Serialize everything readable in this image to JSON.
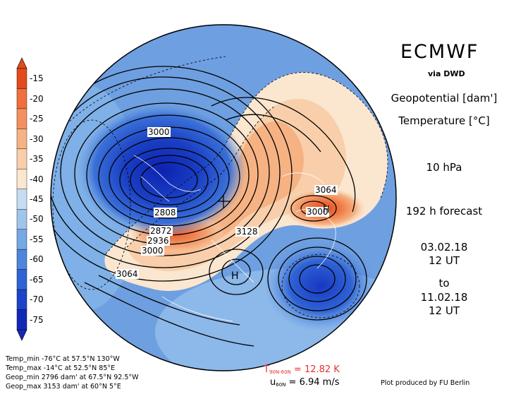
{
  "header": {
    "brand": "ECMWF",
    "source": "via DWD",
    "variable_1": "Geopotential [dam']",
    "variable_2": "Temperature [°C]",
    "level": "10 hPa",
    "forecast": "192 h forecast",
    "init_date": "03.02.18",
    "init_time": "12 UT",
    "to": "to",
    "valid_date": "11.02.18",
    "valid_time": "12 UT"
  },
  "colorbar": {
    "unit": "°C",
    "ticks": [
      "-15",
      "-20",
      "-25",
      "-30",
      "-35",
      "-40",
      "-45",
      "-50",
      "-55",
      "-60",
      "-65",
      "-70",
      "-75"
    ],
    "colors": [
      "#e34a1c",
      "#ef6f3e",
      "#f3905f",
      "#f6b283",
      "#f8cfaa",
      "#fbe6cf",
      "#c5dcf2",
      "#9fc5ec",
      "#75a8e4",
      "#4e86db",
      "#2f63d4",
      "#1d43c8",
      "#1228b8"
    ]
  },
  "contour_labels": {
    "c3000_top": "3000",
    "c2808": "2808",
    "c2872": "2872",
    "c2936": "2936",
    "c3000_left": "3000",
    "c3064_left": "3064",
    "c3128": "3128",
    "c3064_right": "3064",
    "c3000_right": "3000",
    "high_marker": "H",
    "high_marker_right": "H"
  },
  "stats": {
    "temp_min": "Temp_min -76°C at 57.5°N 130°W",
    "temp_max": "Temp_max -14°C at 52.5°N 85°E",
    "geop_min": "Geop_min 2796 dam' at 67.5°N 92.5°W",
    "geop_max": "Geop_max 3153 dam' at 60°N 5°E"
  },
  "indices": {
    "t_label": "T",
    "t_sub": "90N-60N",
    "t_value": "= 12.82 K",
    "u_label": "u",
    "u_sub": "60N",
    "u_value": "= 6.94 m/s"
  },
  "credit": "Plot produced by FU Berlin",
  "colors": {
    "cold_core": "#1a3fc4",
    "warm_core": "#e35a22",
    "neutral": "#fbe6cf",
    "ocean_blue": "#9fc5ec"
  }
}
